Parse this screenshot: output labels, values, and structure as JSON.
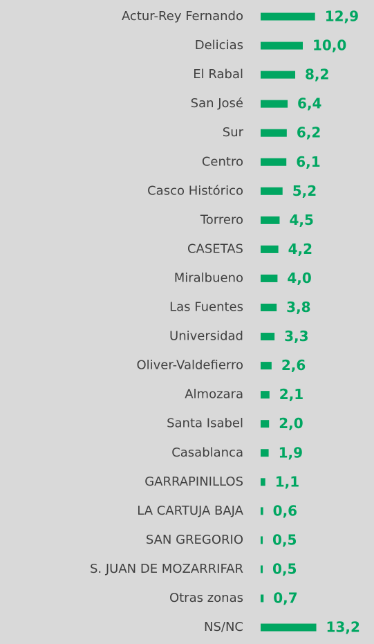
{
  "chart_data": {
    "type": "bar",
    "orientation": "horizontal",
    "color": "#00a661",
    "categories": [
      "Actur-Rey Fernando",
      "Delicias",
      "El Rabal",
      "San José",
      "Sur",
      "Centro",
      "Casco Histórico",
      "Torrero",
      "CASETAS",
      "Miralbueno",
      "Las Fuentes",
      "Universidad",
      "Oliver-Valdefierro",
      "Almozara",
      "Santa Isabel",
      "Casablanca",
      "GARRAPINILLOS",
      "LA CARTUJA BAJA",
      "SAN GREGORIO",
      "S. JUAN DE MOZARRIFAR",
      "Otras zonas",
      "NS/NC"
    ],
    "values": [
      12.9,
      10.0,
      8.2,
      6.4,
      6.2,
      6.1,
      5.2,
      4.5,
      4.2,
      4.0,
      3.8,
      3.3,
      2.6,
      2.1,
      2.0,
      1.9,
      1.1,
      0.6,
      0.5,
      0.5,
      0.7,
      13.2
    ],
    "value_labels": [
      "12,9",
      "10,0",
      "8,2",
      "6,4",
      "6,2",
      "6,1",
      "5,2",
      "4,5",
      "4,2",
      "4,0",
      "3,8",
      "3,3",
      "2,6",
      "2,1",
      "2,0",
      "1,9",
      "1,1",
      "0,6",
      "0,5",
      "0,5",
      "0,7",
      "13,2"
    ]
  }
}
